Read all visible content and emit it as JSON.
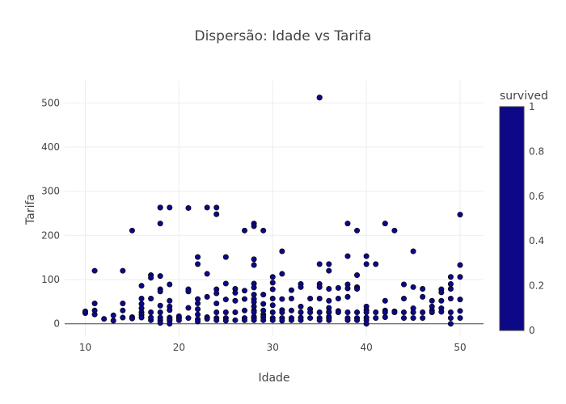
{
  "chart_data": {
    "type": "scatter",
    "title": "Dispersão: Idade vs Tarifa",
    "xlabel": "Idade",
    "ylabel": "Tarifa",
    "xlim": [
      7.8,
      52.5
    ],
    "ylim": [
      -28,
      550
    ],
    "xticks": [
      10,
      20,
      30,
      40,
      50
    ],
    "yticks": [
      0,
      100,
      200,
      300,
      400,
      500
    ],
    "grid": true,
    "marker_color": "#0d0887",
    "colorbar": {
      "title": "survived",
      "ticks": [
        0,
        0.2,
        0.4,
        0.6,
        0.8,
        1
      ],
      "tick_labels": [
        "0",
        "0.2",
        "0.4",
        "0.6",
        "0.8",
        "1"
      ],
      "color": "#0d0887"
    },
    "x": [
      10,
      10,
      11,
      11,
      11,
      11,
      12,
      13,
      13,
      14,
      14,
      14,
      14,
      15,
      15,
      15,
      16,
      16,
      16,
      16,
      16,
      16,
      16,
      17,
      17,
      17,
      17,
      17,
      17,
      18,
      18,
      18,
      18,
      18,
      18,
      18,
      18,
      18,
      18,
      18,
      19,
      19,
      19,
      19,
      19,
      19,
      19,
      19,
      19,
      20,
      20,
      20,
      21,
      21,
      21,
      21,
      21,
      22,
      22,
      22,
      22,
      22,
      22,
      22,
      22,
      23,
      23,
      23,
      23,
      23,
      24,
      24,
      24,
      24,
      24,
      24,
      24,
      24,
      25,
      25,
      25,
      25,
      25,
      25,
      26,
      26,
      26,
      26,
      26,
      27,
      27,
      27,
      27,
      27,
      27,
      28,
      28,
      28,
      28,
      28,
      28,
      28,
      28,
      28,
      28,
      28,
      28,
      28,
      28,
      28,
      29,
      29,
      29,
      29,
      29,
      29,
      29,
      30,
      30,
      30,
      30,
      30,
      30,
      30,
      30,
      31,
      31,
      31,
      31,
      31,
      31,
      31,
      32,
      32,
      32,
      32,
      32,
      33,
      33,
      33,
      33,
      33,
      33,
      34,
      34,
      34,
      34,
      35,
      35,
      35,
      35,
      35,
      35,
      35,
      35,
      35,
      36,
      36,
      36,
      36,
      36,
      36,
      36,
      36,
      36,
      36,
      37,
      37,
      37,
      37,
      38,
      38,
      38,
      38,
      38,
      38,
      38,
      38,
      39,
      39,
      39,
      39,
      39,
      39,
      39,
      40,
      40,
      40,
      40,
      40,
      40,
      40,
      40,
      41,
      41,
      41,
      42,
      42,
      42,
      42,
      42,
      43,
      43,
      43,
      44,
      44,
      44,
      44,
      45,
      45,
      45,
      45,
      45,
      46,
      46,
      46,
      46,
      47,
      47,
      47,
      47,
      48,
      48,
      48,
      48,
      48,
      49,
      49,
      49,
      49,
      49,
      49,
      49,
      50,
      50,
      50,
      50,
      50,
      50
    ],
    "y": [
      24,
      28,
      120,
      46,
      30,
      21,
      11,
      7,
      19,
      120,
      46,
      30,
      14,
      211,
      15,
      12,
      86,
      57,
      45,
      35,
      26,
      20,
      14,
      110,
      104,
      57,
      26,
      8,
      14,
      263,
      263,
      227,
      108,
      78,
      73,
      41,
      26,
      14,
      8,
      2,
      263,
      89,
      52,
      39,
      31,
      14,
      10,
      7,
      0,
      17,
      13,
      8,
      262,
      78,
      73,
      36,
      13,
      151,
      135,
      56,
      46,
      33,
      21,
      10,
      5,
      263,
      113,
      61,
      15,
      11,
      263,
      248,
      78,
      69,
      46,
      26,
      13,
      8,
      151,
      91,
      55,
      26,
      13,
      7,
      79,
      70,
      52,
      26,
      8,
      211,
      75,
      56,
      30,
      13,
      8,
      227,
      221,
      146,
      133,
      91,
      82,
      66,
      56,
      49,
      39,
      30,
      26,
      16,
      13,
      8,
      211,
      66,
      45,
      30,
      21,
      15,
      8,
      106,
      93,
      78,
      57,
      42,
      26,
      13,
      8,
      164,
      113,
      56,
      31,
      26,
      13,
      7,
      76,
      57,
      30,
      13,
      8,
      90,
      83,
      39,
      26,
      14,
      8,
      57,
      33,
      26,
      13,
      512,
      512,
      135,
      90,
      83,
      57,
      26,
      13,
      8,
      135,
      120,
      79,
      52,
      36,
      27,
      26,
      16,
      13,
      8,
      81,
      57,
      29,
      26,
      227,
      153,
      89,
      80,
      61,
      26,
      13,
      8,
      211,
      110,
      83,
      79,
      26,
      13,
      8,
      153,
      135,
      39,
      31,
      26,
      14,
      8,
      0,
      135,
      26,
      13,
      227,
      52,
      30,
      26,
      15,
      211,
      28,
      26,
      89,
      57,
      26,
      13,
      164,
      83,
      35,
      26,
      13,
      79,
      61,
      26,
      13,
      52,
      39,
      30,
      26,
      78,
      71,
      52,
      35,
      27,
      106,
      90,
      79,
      57,
      26,
      13,
      0,
      247,
      133,
      106,
      55,
      29,
      13
    ]
  }
}
